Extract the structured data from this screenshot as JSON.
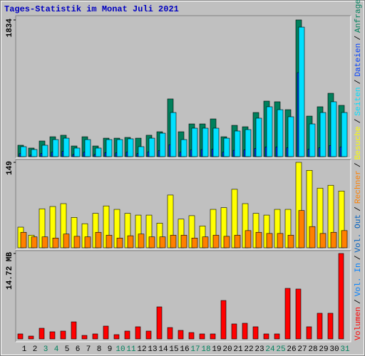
{
  "title": "Tages-Statistik im Monat Juli 2021",
  "legend_separator": "/",
  "chart_data": [
    {
      "type": "bar",
      "ylim": [
        0,
        1834
      ],
      "yticks": [
        1834
      ],
      "series": [
        {
          "name": "Anfragen",
          "color": "#00805c",
          "values": [
            153,
            115,
            210,
            267,
            287,
            143,
            267,
            143,
            248,
            248,
            258,
            248,
            287,
            334,
            774,
            334,
            439,
            439,
            506,
            267,
            420,
            401,
            592,
            745,
            736,
            630,
            1834,
            544,
            669,
            850,
            688
          ]
        },
        {
          "name": "Dateien",
          "color": "#0040ff",
          "values": [
            40,
            20,
            45,
            60,
            70,
            30,
            60,
            30,
            55,
            50,
            60,
            40,
            65,
            80,
            160,
            60,
            90,
            95,
            100,
            60,
            85,
            90,
            110,
            130,
            130,
            120,
            1127,
            100,
            120,
            150,
            130
          ]
        },
        {
          "name": "Seiten",
          "color": "#00e0ff",
          "values": [
            134,
            96,
            153,
            229,
            248,
            115,
            229,
            115,
            229,
            229,
            239,
            134,
            248,
            315,
            592,
            229,
            382,
            382,
            382,
            248,
            344,
            363,
            516,
            669,
            630,
            535,
            1738,
            439,
            592,
            736,
            592
          ]
        }
      ]
    },
    {
      "type": "bar",
      "ylim": [
        0,
        149
      ],
      "yticks": [
        149
      ],
      "series": [
        {
          "name": "Besuche",
          "color": "#ffff00",
          "values": [
            36,
            22,
            68,
            72,
            77,
            53,
            42,
            60,
            73,
            67,
            60,
            57,
            57,
            43,
            92,
            50,
            56,
            38,
            67,
            70,
            102,
            77,
            60,
            57,
            67,
            67,
            149,
            135,
            104,
            109,
            99
          ]
        },
        {
          "name": "Rechner",
          "color": "#ff8000",
          "values": [
            27,
            19,
            19,
            17,
            24,
            20,
            19,
            27,
            22,
            17,
            21,
            24,
            19,
            19,
            22,
            22,
            17,
            19,
            22,
            20,
            22,
            30,
            27,
            25,
            25,
            22,
            65,
            37,
            25,
            27,
            30
          ]
        }
      ]
    },
    {
      "type": "bar",
      "ylim": [
        0,
        14.72
      ],
      "yticks": [
        {
          "value": 14.72,
          "label": "14.72 MB"
        }
      ],
      "categories": [
        "1",
        "2",
        "3",
        "4",
        "5",
        "6",
        "7",
        "8",
        "9",
        "10",
        "11",
        "12",
        "13",
        "14",
        "15",
        "16",
        "17",
        "18",
        "19",
        "20",
        "21",
        "22",
        "23",
        "24",
        "25",
        "26",
        "27",
        "28",
        "29",
        "30",
        "31"
      ],
      "category_colors": [
        "#000000",
        "#000000",
        "#00805c",
        "#00805c",
        "#000000",
        "#000000",
        "#000000",
        "#000000",
        "#000000",
        "#00805c",
        "#00805c",
        "#000000",
        "#000000",
        "#000000",
        "#000000",
        "#000000",
        "#00805c",
        "#00805c",
        "#000000",
        "#000000",
        "#000000",
        "#000000",
        "#000000",
        "#00805c",
        "#00805c",
        "#000000",
        "#000000",
        "#000000",
        "#000000",
        "#000000",
        "#00805c"
      ],
      "series": [
        {
          "name": "Volumen",
          "color": "#ff0000",
          "values": [
            0.86,
            0.49,
            1.84,
            1.23,
            1.35,
            2.94,
            0.61,
            0.86,
            2.21,
            0.74,
            1.35,
            2.09,
            1.35,
            5.52,
            1.96,
            1.47,
            1.1,
            0.86,
            0.86,
            6.62,
            2.58,
            2.7,
            2.09,
            0.86,
            0.86,
            8.71,
            8.59,
            2.09,
            4.42,
            4.42,
            14.72
          ]
        }
      ],
      "legend_extra": [
        {
          "name": "Vol. In",
          "color": "#0080ff"
        },
        {
          "name": "Vol. Out",
          "color": "#0060c0"
        }
      ]
    }
  ]
}
